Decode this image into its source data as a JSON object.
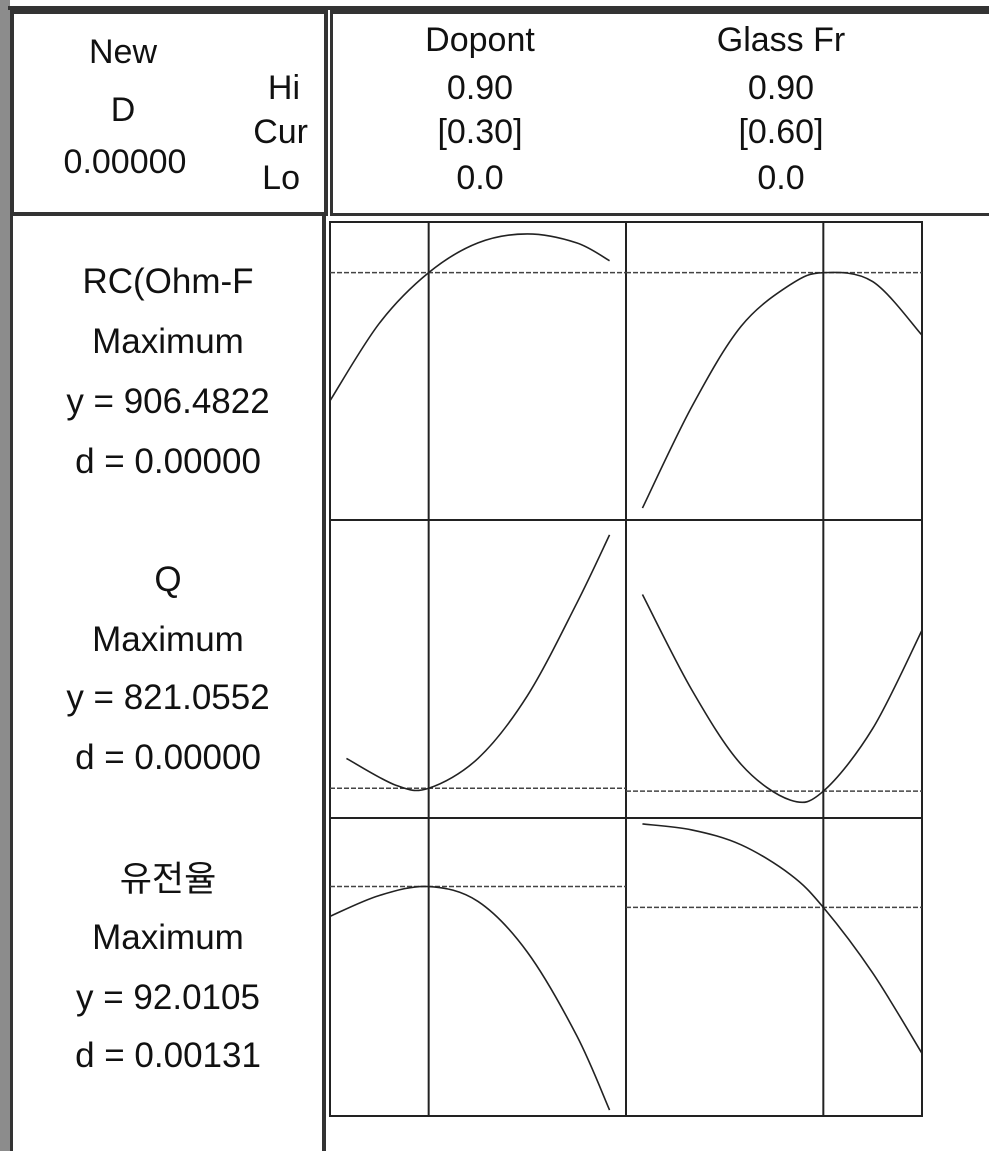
{
  "header": {
    "new_label": "New",
    "d_label": "D",
    "d_value": "0.00000",
    "hi_label": "Hi",
    "cur_label": "Cur",
    "lo_label": "Lo"
  },
  "factors": [
    {
      "name": "Dopont",
      "hi": "0.90",
      "cur": "[0.30]",
      "lo": "0.0"
    },
    {
      "name": "Glass Fr",
      "hi": "0.90",
      "cur": "[0.60]",
      "lo": "0.0"
    }
  ],
  "responses": [
    {
      "name": "RC(Ohm-F",
      "goal": "Maximum",
      "y_text": "y = 906.4822",
      "d_text": "d = 0.00000"
    },
    {
      "name": "Q",
      "goal": "Maximum",
      "y_text": "y = 821.0552",
      "d_text": "d = 0.00000"
    },
    {
      "name": "유전율",
      "goal": "Maximum",
      "y_text": "y = 92.0105",
      "d_text": "d = 0.00131"
    }
  ],
  "chart_data": {
    "type": "line",
    "x_range": [
      0.0,
      0.9
    ],
    "current_x": [
      0.3,
      0.6
    ],
    "panels": [
      {
        "row": 0,
        "col": 0,
        "x": [
          0.0,
          0.15,
          0.3,
          0.45,
          0.6,
          0.75,
          0.85
        ],
        "y": [
          0.4,
          0.66,
          0.83,
          0.93,
          0.96,
          0.93,
          0.87
        ],
        "current_y": 0.83
      },
      {
        "row": 0,
        "col": 1,
        "x": [
          0.05,
          0.2,
          0.35,
          0.5,
          0.6,
          0.75,
          0.9
        ],
        "y": [
          0.04,
          0.38,
          0.65,
          0.79,
          0.83,
          0.8,
          0.62
        ],
        "current_y": 0.83
      },
      {
        "row": 1,
        "col": 0,
        "x": [
          0.05,
          0.2,
          0.3,
          0.45,
          0.6,
          0.75,
          0.85
        ],
        "y": [
          0.2,
          0.11,
          0.1,
          0.2,
          0.41,
          0.72,
          0.95
        ],
        "current_y": 0.1
      },
      {
        "row": 1,
        "col": 1,
        "x": [
          0.05,
          0.2,
          0.35,
          0.5,
          0.6,
          0.75,
          0.9
        ],
        "y": [
          0.75,
          0.43,
          0.18,
          0.06,
          0.09,
          0.3,
          0.63
        ],
        "current_y": 0.09
      },
      {
        "row": 2,
        "col": 0,
        "x": [
          0.0,
          0.15,
          0.3,
          0.45,
          0.6,
          0.75,
          0.85
        ],
        "y": [
          0.67,
          0.74,
          0.77,
          0.72,
          0.55,
          0.27,
          0.02
        ],
        "current_y": 0.77
      },
      {
        "row": 2,
        "col": 1,
        "x": [
          0.05,
          0.2,
          0.35,
          0.5,
          0.6,
          0.75,
          0.9
        ],
        "y": [
          0.98,
          0.96,
          0.91,
          0.81,
          0.7,
          0.48,
          0.21
        ],
        "current_y": 0.7
      }
    ]
  }
}
